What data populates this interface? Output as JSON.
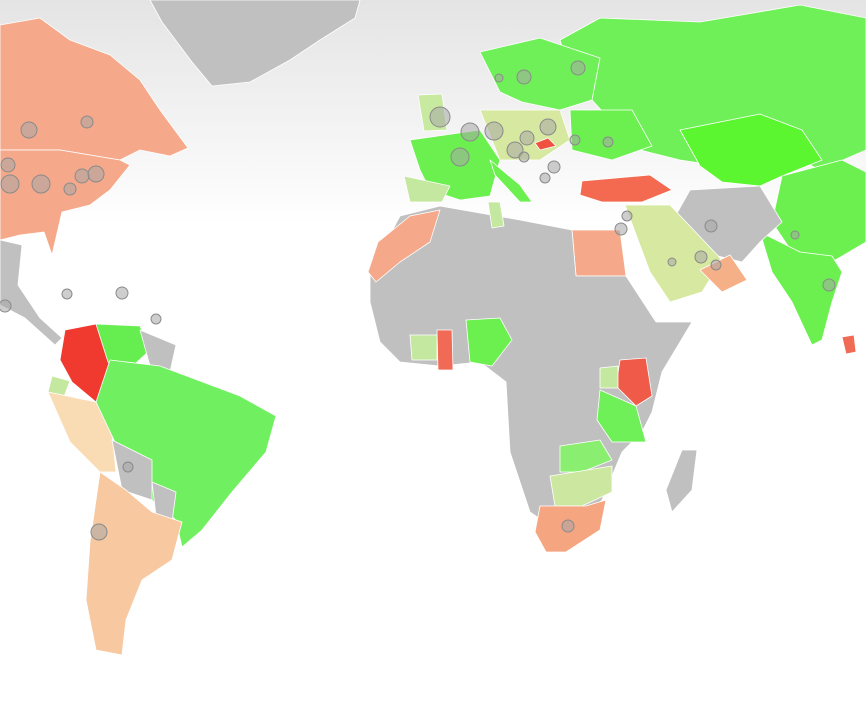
{
  "map": {
    "regions": [
      {
        "color": "#c0c0c0"
      },
      {
        "color": "#f5a98a"
      },
      {
        "color": "#f5a98a"
      },
      {
        "color": "#c0c0c0"
      },
      {
        "color": "#f03a2f"
      },
      {
        "color": "#66ee50"
      },
      {
        "color": "#c0c0c0"
      },
      {
        "color": "#c5e8a0"
      },
      {
        "color": "#f9dcb4"
      },
      {
        "color": "#70f060"
      },
      {
        "color": "#c0c0c0"
      },
      {
        "color": "#c0c0c0"
      },
      {
        "color": "#f8c8a0"
      },
      {
        "color": "#70f058"
      },
      {
        "color": "#70f058"
      },
      {
        "color": "#5cf630"
      },
      {
        "color": "#6cf050"
      },
      {
        "color": "#6cf050"
      },
      {
        "color": "#f06a55"
      },
      {
        "color": "#c0c0c0"
      },
      {
        "color": "#6cf050"
      },
      {
        "color": "#c5e8a0"
      },
      {
        "color": "#c8eaa0"
      },
      {
        "color": "#d7e8a0"
      },
      {
        "color": "#6cf050"
      },
      {
        "color": "#6cf050"
      },
      {
        "color": "#f46a50"
      },
      {
        "color": "#f05040"
      },
      {
        "color": "#d7e8a0"
      },
      {
        "color": "#f6b088"
      },
      {
        "color": "#f5a98a"
      },
      {
        "color": "#c0c0c0"
      },
      {
        "color": "#f5a98a"
      },
      {
        "color": "#c5e8a0"
      },
      {
        "color": "#6cf050"
      },
      {
        "color": "#f06a55"
      },
      {
        "color": "#c5e8a0"
      },
      {
        "color": "#f05a48"
      },
      {
        "color": "#70f058"
      },
      {
        "color": "#c5e8a0"
      },
      {
        "color": "#8aee70"
      },
      {
        "color": "#cce8a0"
      },
      {
        "color": "#f5a580"
      },
      {
        "color": "#c0c0c0"
      }
    ]
  }
}
